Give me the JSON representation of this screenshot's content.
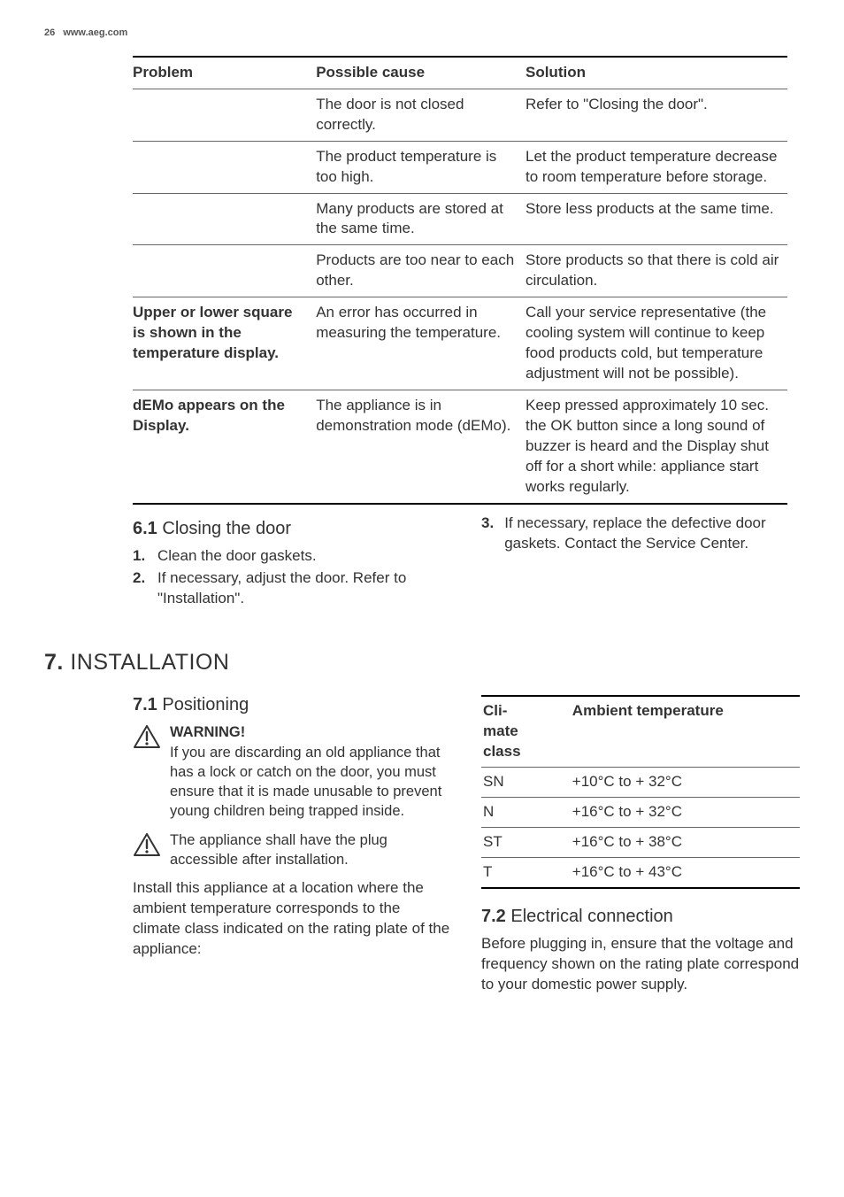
{
  "header": {
    "page_number": "26",
    "site": "www.aeg.com"
  },
  "trouble_table": {
    "headers": [
      "Problem",
      "Possible cause",
      "Solution"
    ],
    "rows": [
      {
        "problem": "",
        "cause": "The door is not closed correctly.",
        "solution": "Refer to \"Closing the door\"."
      },
      {
        "problem": "",
        "cause": "The product temperature is too high.",
        "solution": "Let the product temperature decrease to room temperature before storage."
      },
      {
        "problem": "",
        "cause": "Many products are stored at the same time.",
        "solution": "Store less products at the same time."
      },
      {
        "problem": "",
        "cause": "Products are too near to each other.",
        "solution": "Store products so that there is cold air circulation."
      },
      {
        "problem": "Upper or lower square is shown in the temperature display.",
        "problem_bold": true,
        "cause": "An error has occurred in measuring the temperature.",
        "solution": "Call your service representative (the cooling system will continue to keep food products cold, but temperature adjustment will not be possible)."
      },
      {
        "problem": "dEMo appears on the Display.",
        "problem_bold": true,
        "cause": "The appliance is in demonstration mode (dEMo).",
        "solution": "Keep pressed approximately 10 sec. the OK button since a long sound of buzzer is heard and the Display shut off for a short while: appliance start works regularly."
      }
    ]
  },
  "section_6_1": {
    "title_num": "6.1",
    "title_text": "Closing the door",
    "left_steps": [
      "Clean the door gaskets.",
      "If necessary, adjust the door. Refer to \"Installation\"."
    ],
    "right_step_num": "3.",
    "right_step": "If necessary, replace the defective door gaskets. Contact the Service Center."
  },
  "section_7": {
    "title_num": "7.",
    "title_text": "INSTALLATION",
    "sub_7_1_num": "7.1",
    "sub_7_1_text": "Positioning",
    "warning_title": "WARNING!",
    "warning_body": "If you are discarding an old appliance that has a lock or catch on the door, you must ensure that it is made unusable to prevent young children being trapped inside.",
    "caution_body": "The appliance shall have the plug accessible after installation.",
    "para_install": "Install this appliance at a location where the ambient temperature corresponds to the climate class indicated on the rating plate of the appliance:",
    "climate_table": {
      "headers": [
        "Climate class",
        "Ambient temperature"
      ],
      "rows": [
        {
          "class": "SN",
          "range": "+10°C to + 32°C"
        },
        {
          "class": "N",
          "range": "+16°C to + 32°C"
        },
        {
          "class": "ST",
          "range": "+16°C to + 38°C"
        },
        {
          "class": "T",
          "range": "+16°C to + 43°C"
        }
      ]
    },
    "sub_7_2_num": "7.2",
    "sub_7_2_text": "Electrical connection",
    "para_electrical": "Before plugging in, ensure that the voltage and frequency shown on the rating plate correspond to your domestic power supply."
  },
  "style": {
    "text_color": "#333333",
    "rule_color": "#666666",
    "heavy_rule_color": "#000000",
    "background": "#ffffff"
  }
}
